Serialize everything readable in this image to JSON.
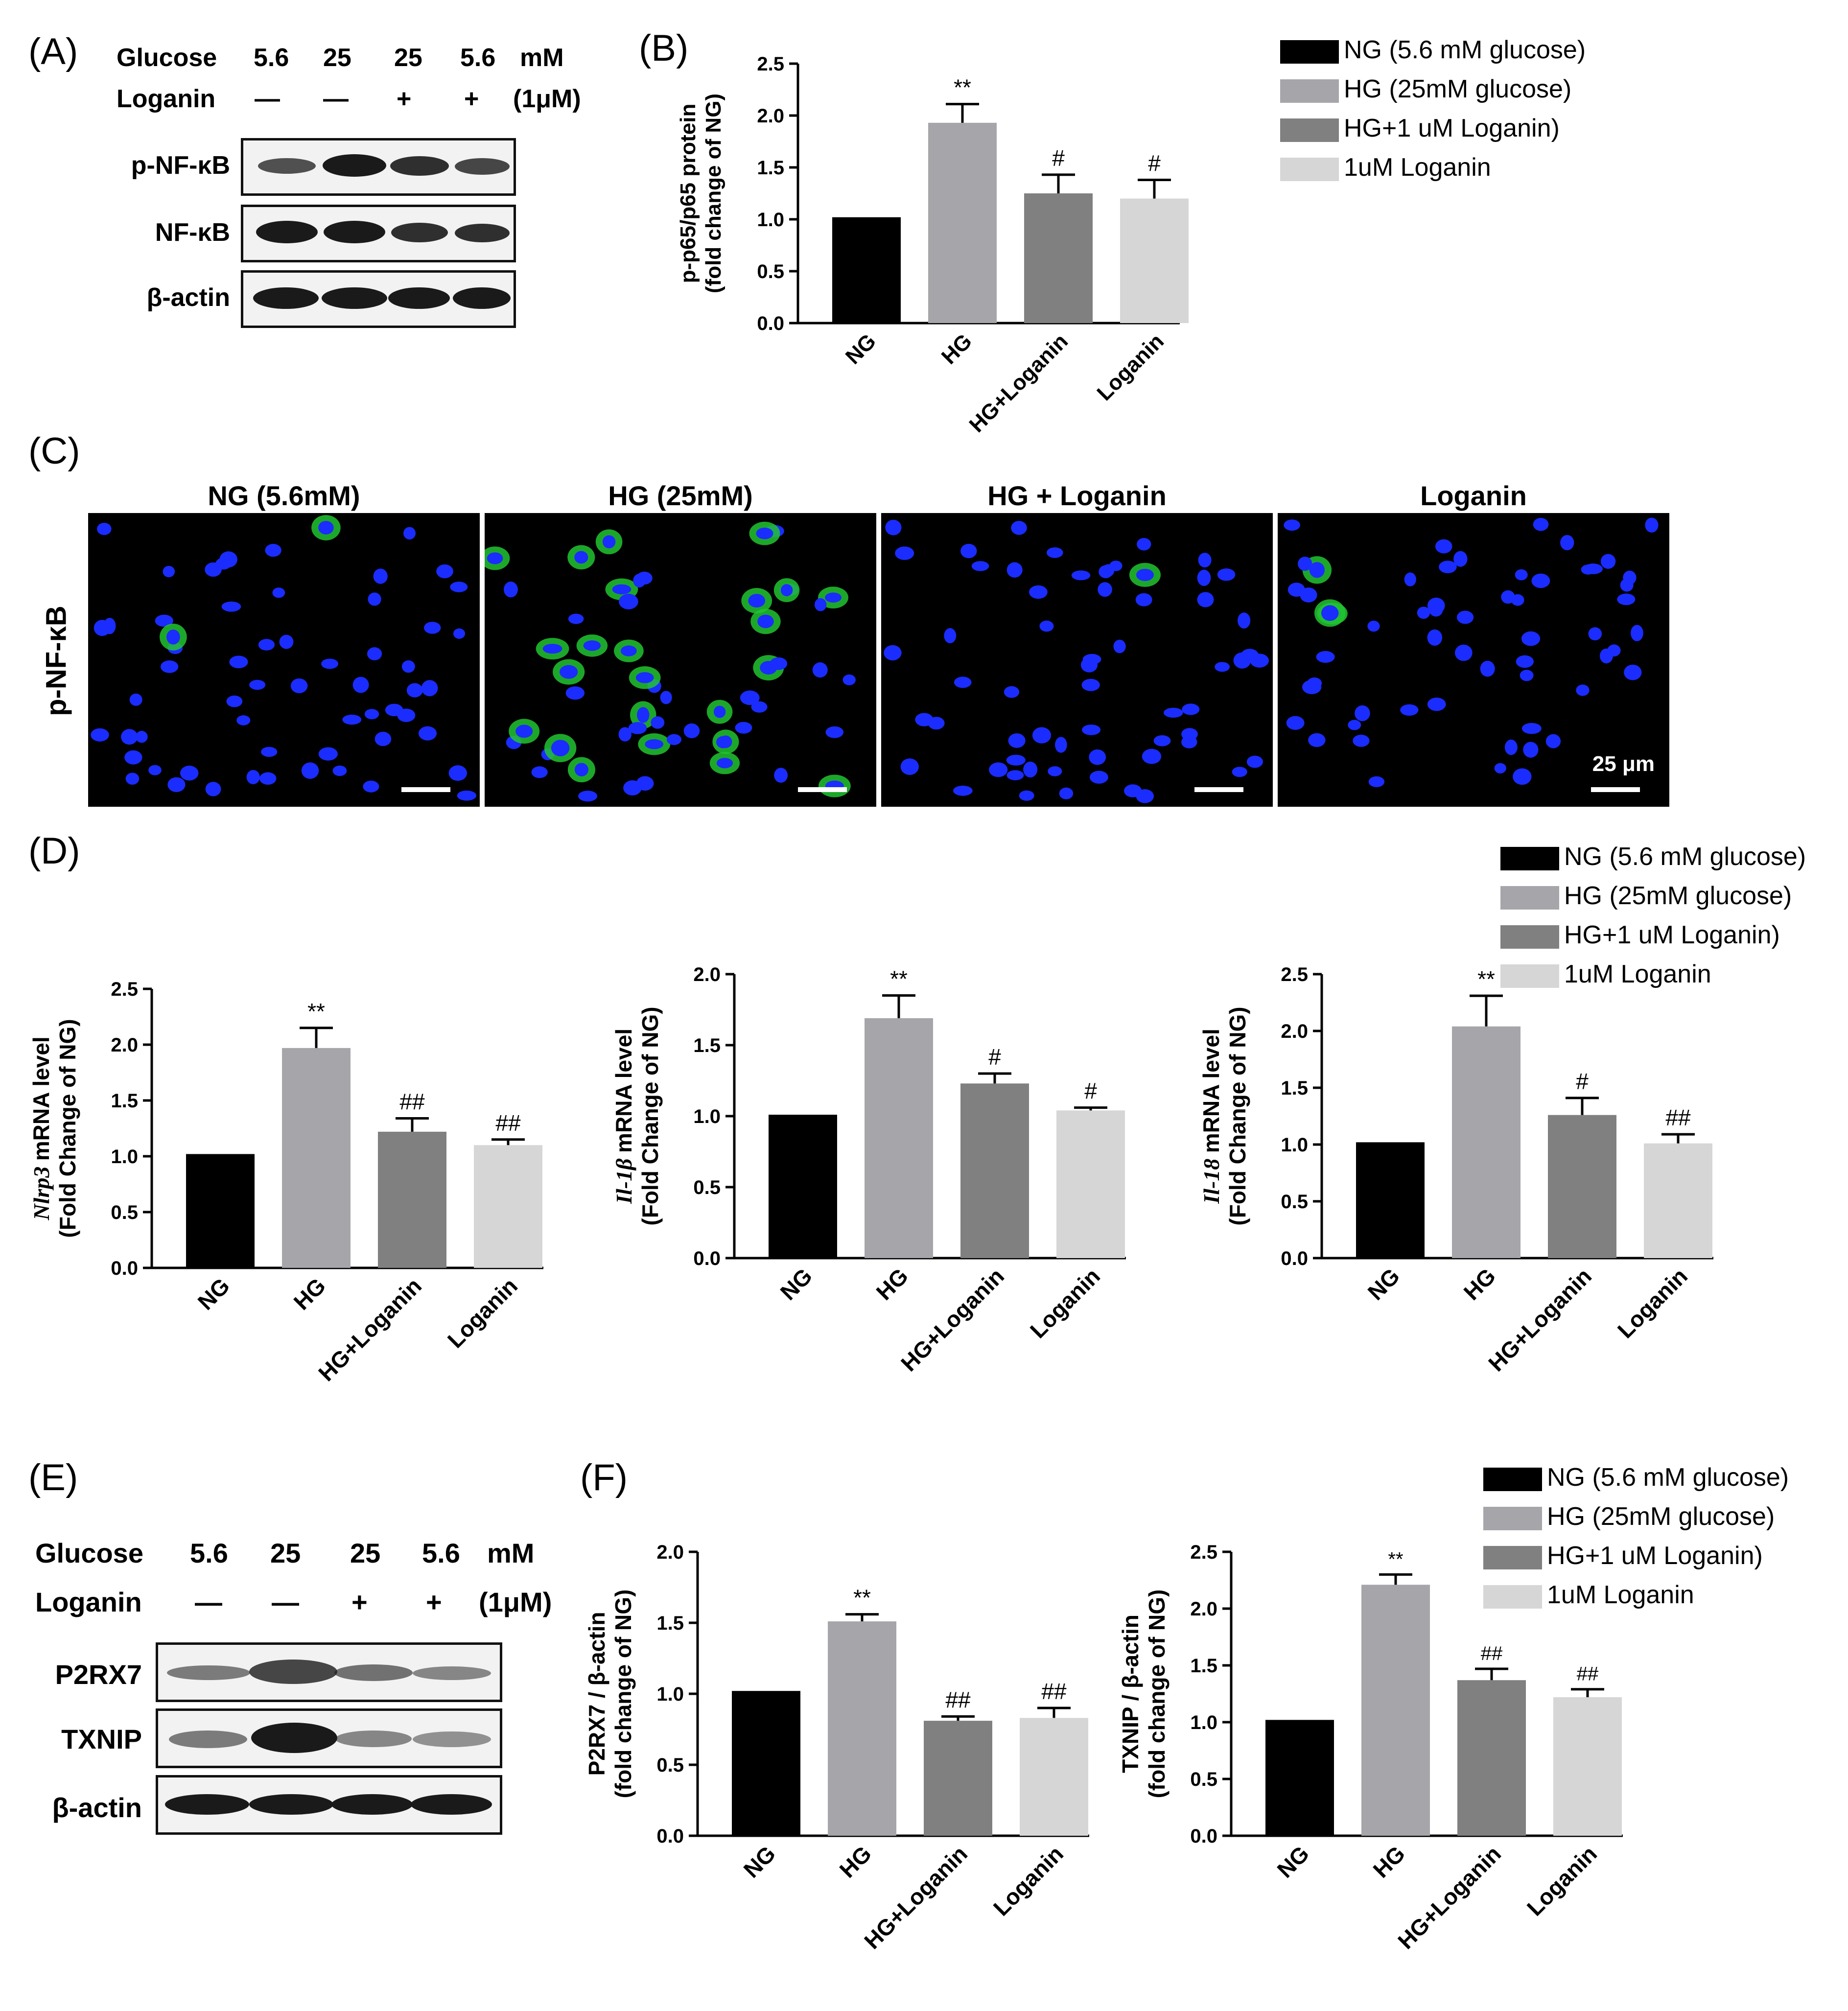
{
  "panels": {
    "A": "(A)",
    "B": "(B)",
    "C": "(C)",
    "D": "(D)",
    "E": "(E)",
    "F": "(F)"
  },
  "blot_header": {
    "glucose_label": "Glucose",
    "loganin_label": "Loganin",
    "glucose_values": [
      "5.6",
      "25",
      "25",
      "5.6"
    ],
    "glucose_unit": "mM",
    "loganin_values": [
      "—",
      "—",
      "+",
      "+"
    ],
    "loganin_unit": "(1μM)"
  },
  "blot_A": {
    "rows": [
      "p-NF-κB",
      "NF-κB",
      "β-actin"
    ]
  },
  "blot_E": {
    "rows": [
      "P2RX7",
      "TXNIP",
      "β-actin"
    ]
  },
  "legend": {
    "entries": [
      "NG (5.6 mM glucose)",
      "HG (25mM glucose)",
      "HG+1 uM Loganin)",
      "1uM Loganin"
    ],
    "colors": [
      "#000000",
      "#a6a6aa",
      "#808080",
      "#d6d6d6"
    ]
  },
  "micro": {
    "titles": [
      "NG (5.6mM)",
      "HG (25mM)",
      "HG + Loganin",
      "Loganin"
    ],
    "row_label": "p-NF-κB",
    "scale_label": "25 μm"
  },
  "chart_data": [
    {
      "id": "B",
      "type": "bar",
      "categories": [
        "NG",
        "HG",
        "HG+Loganin",
        "Loganin"
      ],
      "values": [
        1.02,
        1.93,
        1.25,
        1.2
      ],
      "errors": [
        0,
        0.18,
        0.18,
        0.18
      ],
      "annotations": [
        "",
        "**",
        "#",
        "#"
      ],
      "ylabel": [
        "p-p65/p65 protein",
        "(fold change of NG)"
      ],
      "ylim": [
        0,
        2.5
      ],
      "yticks": [
        "0.0",
        "0.5",
        "1.0",
        "1.5",
        "2.0",
        "2.5"
      ]
    },
    {
      "id": "D1",
      "type": "bar",
      "categories": [
        "NG",
        "HG",
        "HG+Loganin",
        "Loganin"
      ],
      "values": [
        1.02,
        1.97,
        1.22,
        1.1
      ],
      "errors": [
        0,
        0.18,
        0.12,
        0.05
      ],
      "annotations": [
        "",
        "**",
        "##",
        "##"
      ],
      "ylabel_italic": "Nlrp3",
      "ylabel": [
        "mRNA level",
        "(Fold Change of NG)"
      ],
      "ylim": [
        0,
        2.5
      ],
      "yticks": [
        "0.0",
        "0.5",
        "1.0",
        "1.5",
        "2.0",
        "2.5"
      ]
    },
    {
      "id": "D2",
      "type": "bar",
      "categories": [
        "NG",
        "HG",
        "HG+Loganin",
        "Loganin"
      ],
      "values": [
        1.01,
        1.69,
        1.23,
        1.04
      ],
      "errors": [
        0,
        0.16,
        0.07,
        0.02
      ],
      "annotations": [
        "",
        "**",
        "#",
        "#"
      ],
      "ylabel_italic": "Il-1β",
      "ylabel": [
        "mRNA level",
        "(Fold Change of NG)"
      ],
      "ylim": [
        0,
        2.0
      ],
      "yticks": [
        "0.0",
        "0.5",
        "1.0",
        "1.5",
        "2.0"
      ]
    },
    {
      "id": "D3",
      "type": "bar",
      "categories": [
        "NG",
        "HG",
        "HG+Loganin",
        "Loganin"
      ],
      "values": [
        1.02,
        2.04,
        1.26,
        1.01
      ],
      "errors": [
        0,
        0.27,
        0.15,
        0.08
      ],
      "annotations": [
        "",
        "**",
        "#",
        "##"
      ],
      "ylabel_italic": "Il-18",
      "ylabel": [
        "mRNA level",
        "(Fold Change of NG)"
      ],
      "ylim": [
        0,
        2.5
      ],
      "yticks": [
        "0.0",
        "0.5",
        "1.0",
        "1.5",
        "2.0",
        "2.5"
      ]
    },
    {
      "id": "F1",
      "type": "bar",
      "categories": [
        "NG",
        "HG",
        "HG+Loganin",
        "Loganin"
      ],
      "values": [
        1.02,
        1.51,
        0.81,
        0.83
      ],
      "errors": [
        0,
        0.05,
        0.03,
        0.07
      ],
      "annotations": [
        "",
        "**",
        "##",
        "##"
      ],
      "ylabel": [
        "P2RX7 / β-actin",
        "(fold change of NG)"
      ],
      "ylim": [
        0,
        2.0
      ],
      "yticks": [
        "0.0",
        "0.5",
        "1.0",
        "1.5",
        "2.0"
      ]
    },
    {
      "id": "F2",
      "type": "bar",
      "categories": [
        "NG",
        "HG",
        "HG+Loganin",
        "Loganin"
      ],
      "values": [
        1.02,
        2.21,
        1.37,
        1.22
      ],
      "errors": [
        0,
        0.09,
        0.1,
        0.07
      ],
      "annotations": [
        "",
        "**",
        "##",
        "##"
      ],
      "ylabel": [
        "TXNIP / β-actin",
        "(fold change of NG)"
      ],
      "ylim": [
        0,
        2.5
      ],
      "yticks": [
        "0.0",
        "0.5",
        "1.0",
        "1.5",
        "2.0",
        "2.5"
      ]
    }
  ]
}
